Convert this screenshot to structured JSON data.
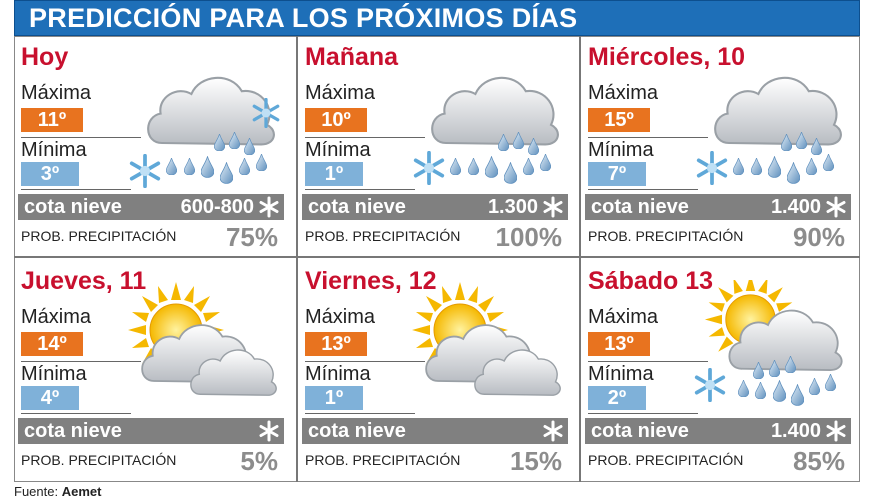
{
  "title": "PREDICCIÓN PARA LOS PRÓXIMOS DÍAS",
  "colors": {
    "header": "#1e6fb8",
    "day_name": "#c8102e",
    "max_box": "#e8731f",
    "min_box": "#7fb1d9",
    "cota_bar": "#808080"
  },
  "days": [
    {
      "name": "Hoy",
      "max_label": "Máxima",
      "max": "11º",
      "min_label": "Mínima",
      "min": "3º",
      "cota_label": "cota nieve",
      "cota_value": "600-800",
      "prob_label": "PROB. PRECIPITACIÓN",
      "prob": "75%",
      "icon": "cloud-rain-snow-icon"
    },
    {
      "name": "Mañana",
      "max_label": "Máxima",
      "max": "10º",
      "min_label": "Mínima",
      "min": "1º",
      "cota_label": "cota nieve",
      "cota_value": "1.300",
      "prob_label": "PROB. PRECIPITACIÓN",
      "prob": "100%",
      "icon": "cloud-rain-snow-icon"
    },
    {
      "name": "Miércoles, 10",
      "max_label": "Máxima",
      "max": "15º",
      "min_label": "Mínima",
      "min": "7º",
      "cota_label": "cota nieve",
      "cota_value": "1.400",
      "prob_label": "PROB. PRECIPITACIÓN",
      "prob": "90%",
      "icon": "cloud-rain-snow-icon"
    },
    {
      "name": "Jueves, 11",
      "max_label": "Máxima",
      "max": "14º",
      "min_label": "Mínima",
      "min": "4º",
      "cota_label": "cota nieve",
      "cota_value": "",
      "prob_label": "PROB. PRECIPITACIÓN",
      "prob": "5%",
      "icon": "sun-cloud-icon"
    },
    {
      "name": "Viernes, 12",
      "max_label": "Máxima",
      "max": "13º",
      "min_label": "Mínima",
      "min": "1º",
      "cota_label": "cota nieve",
      "cota_value": "",
      "prob_label": "PROB. PRECIPITACIÓN",
      "prob": "15%",
      "icon": "sun-cloud-icon"
    },
    {
      "name": "Sábado 13",
      "max_label": "Máxima",
      "max": "13º",
      "min_label": "Mínima",
      "min": "2º",
      "cota_label": "cota nieve",
      "cota_value": "1.400",
      "prob_label": "PROB. PRECIPITACIÓN",
      "prob": "85%",
      "icon": "sun-cloud-rain-snow-icon"
    }
  ],
  "footer": {
    "label": "Fuente:",
    "source": "Aemet"
  }
}
